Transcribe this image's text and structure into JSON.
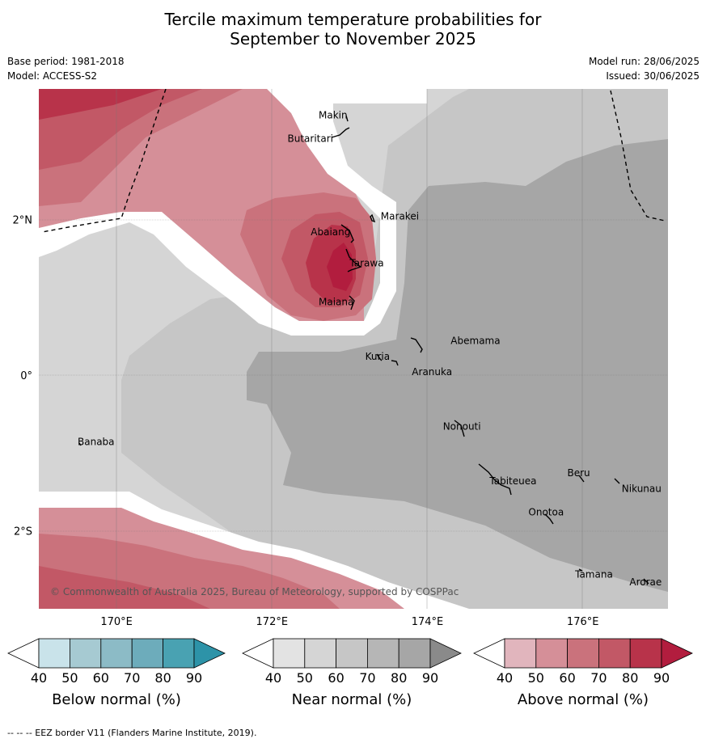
{
  "title_line1": "Tercile maximum temperature probabilities for",
  "title_line2": "September to November 2025",
  "base_period": "Base period: 1981-2018",
  "model": "Model: ACCESS-S2",
  "model_run": "Model run: 28/06/2025",
  "issued": "Issued: 30/06/2025",
  "copyright": "© Commonwealth of Australia 2025, Bureau of Meteorology, supported by COSPPac",
  "footnote": "-- -- -- EEZ border V11 (Flanders Marine Institute, 2019).",
  "lat_ticks": [
    {
      "label": "2°N",
      "lat": 2
    },
    {
      "label": "0°",
      "lat": 0
    },
    {
      "label": "2°S",
      "lat": -2
    }
  ],
  "lon_ticks": [
    {
      "label": "170°E",
      "lon": 170
    },
    {
      "label": "172°E",
      "lon": 172
    },
    {
      "label": "174°E",
      "lon": 174
    },
    {
      "label": "176°E",
      "lon": 176
    }
  ],
  "places": [
    {
      "name": "Makin",
      "lon": 172.6,
      "lat": 3.3
    },
    {
      "name": "Butaritari",
      "lon": 172.2,
      "lat": 3.0
    },
    {
      "name": "Marakei",
      "lon": 173.4,
      "lat": 2.0
    },
    {
      "name": "Abaiang",
      "lon": 172.5,
      "lat": 1.8
    },
    {
      "name": "Tarawa",
      "lon": 173.0,
      "lat": 1.4
    },
    {
      "name": "Maiana",
      "lon": 172.6,
      "lat": 0.9
    },
    {
      "name": "Abemama",
      "lon": 174.3,
      "lat": 0.4
    },
    {
      "name": "Kuria",
      "lon": 173.2,
      "lat": 0.2
    },
    {
      "name": "Aranuka",
      "lon": 173.8,
      "lat": 0.0
    },
    {
      "name": "Banaba",
      "lon": 169.5,
      "lat": -0.9
    },
    {
      "name": "Nonouti",
      "lon": 174.2,
      "lat": -0.7
    },
    {
      "name": "Beru",
      "lon": 175.8,
      "lat": -1.3
    },
    {
      "name": "Nikunau",
      "lon": 176.5,
      "lat": -1.5
    },
    {
      "name": "Tabiteuea",
      "lon": 174.8,
      "lat": -1.4
    },
    {
      "name": "Onotoa",
      "lon": 175.3,
      "lat": -1.8
    },
    {
      "name": "Tamana",
      "lon": 175.9,
      "lat": -2.6
    },
    {
      "name": "Arorae",
      "lon": 176.6,
      "lat": -2.7
    }
  ],
  "colorbars": [
    {
      "label": "Below normal (%)",
      "ticks": [
        "40",
        "50",
        "60",
        "70",
        "80",
        "90"
      ],
      "colors": [
        "#ffffff",
        "#c9e3ea",
        "#a6cad2",
        "#8cbbc6",
        "#6dacbb",
        "#49a2b2",
        "#2d93a8"
      ]
    },
    {
      "label": "Near normal (%)",
      "ticks": [
        "40",
        "50",
        "60",
        "70",
        "80",
        "90"
      ],
      "colors": [
        "#ffffff",
        "#e3e3e3",
        "#d5d5d5",
        "#c6c6c6",
        "#b6b6b6",
        "#a6a6a6",
        "#8a8a8a"
      ]
    },
    {
      "label": "Above normal (%)",
      "ticks": [
        "40",
        "50",
        "60",
        "70",
        "80",
        "90"
      ],
      "colors": [
        "#ffffff",
        "#e1b5bd",
        "#d58f98",
        "#ca727c",
        "#c25866",
        "#b8334a",
        "#b21d3e"
      ]
    }
  ]
}
